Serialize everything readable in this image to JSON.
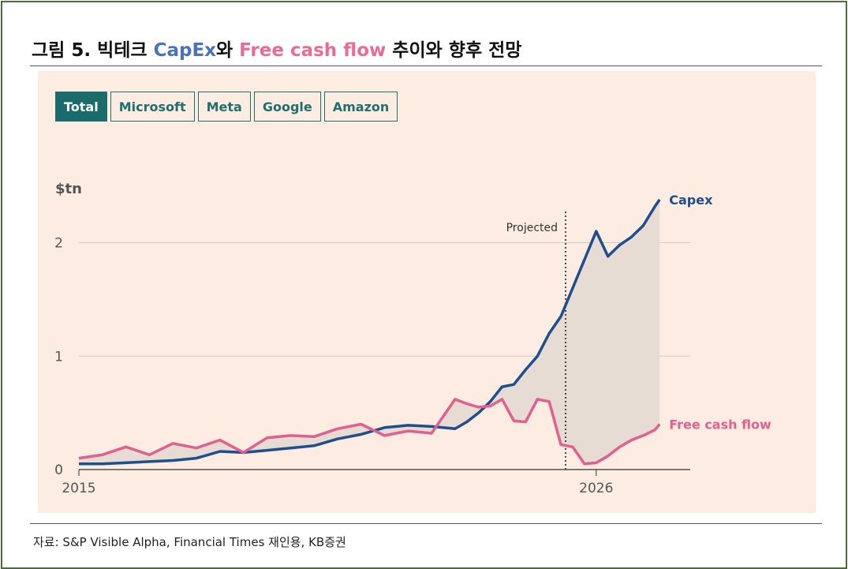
{
  "figure": {
    "title_prefix": "그림 5. 빅테크 ",
    "title_capex": "CapEx",
    "title_mid": "와 ",
    "title_fcf": "Free cash flow",
    "title_suffix": " 추이와 향후 전망",
    "source": "자료: S&P Visible Alpha, Financial Times 재인용, KB증권"
  },
  "tabs": [
    {
      "label": "Total",
      "active": true
    },
    {
      "label": "Microsoft",
      "active": false
    },
    {
      "label": "Meta",
      "active": false
    },
    {
      "label": "Google",
      "active": false
    },
    {
      "label": "Amazon",
      "active": false
    }
  ],
  "colors": {
    "capex": "#1f4e8c",
    "fcf": "#e0608f",
    "fill": "#e6dcd4",
    "grid": "#d9c8bb",
    "axis_text": "#555555"
  },
  "chart_data": {
    "type": "line",
    "ylabel": "$tn",
    "xlim": [
      2015,
      2028
    ],
    "ylim": [
      0,
      2.4
    ],
    "yticks": [
      0,
      1,
      2
    ],
    "xticks": [
      2015,
      2026
    ],
    "projection_start": 2025.35,
    "projection_label": "Projected",
    "grid": true,
    "series": [
      {
        "name": "Capex",
        "x": [
          2015,
          2015.5,
          2016,
          2016.5,
          2017,
          2017.5,
          2018,
          2018.5,
          2019,
          2019.5,
          2020,
          2020.5,
          2021,
          2021.5,
          2022,
          2022.5,
          2023,
          2023.25,
          2023.5,
          2023.75,
          2024,
          2024.25,
          2024.5,
          2024.75,
          2025,
          2025.25,
          2025.5,
          2025.75,
          2026,
          2026.25,
          2026.5,
          2026.75,
          2027,
          2027.25,
          2027.35
        ],
        "values": [
          0.05,
          0.05,
          0.06,
          0.07,
          0.08,
          0.1,
          0.16,
          0.15,
          0.17,
          0.19,
          0.21,
          0.27,
          0.31,
          0.37,
          0.39,
          0.38,
          0.36,
          0.42,
          0.5,
          0.6,
          0.73,
          0.75,
          0.88,
          1.0,
          1.2,
          1.35,
          1.6,
          1.85,
          2.1,
          1.88,
          1.98,
          2.05,
          2.15,
          2.32,
          2.38
        ]
      },
      {
        "name": "Free cash flow",
        "x": [
          2015,
          2015.5,
          2016,
          2016.5,
          2017,
          2017.5,
          2018,
          2018.5,
          2019,
          2019.5,
          2020,
          2020.5,
          2021,
          2021.5,
          2022,
          2022.5,
          2023,
          2023.25,
          2023.5,
          2023.75,
          2024,
          2024.25,
          2024.5,
          2024.75,
          2025,
          2025.25,
          2025.5,
          2025.75,
          2026,
          2026.25,
          2026.5,
          2026.75,
          2027,
          2027.25,
          2027.35
        ],
        "values": [
          0.1,
          0.13,
          0.2,
          0.13,
          0.23,
          0.19,
          0.26,
          0.15,
          0.28,
          0.3,
          0.29,
          0.36,
          0.4,
          0.3,
          0.34,
          0.32,
          0.62,
          0.58,
          0.55,
          0.56,
          0.62,
          0.43,
          0.42,
          0.62,
          0.6,
          0.22,
          0.2,
          0.05,
          0.06,
          0.12,
          0.2,
          0.26,
          0.3,
          0.35,
          0.4
        ]
      }
    ]
  }
}
